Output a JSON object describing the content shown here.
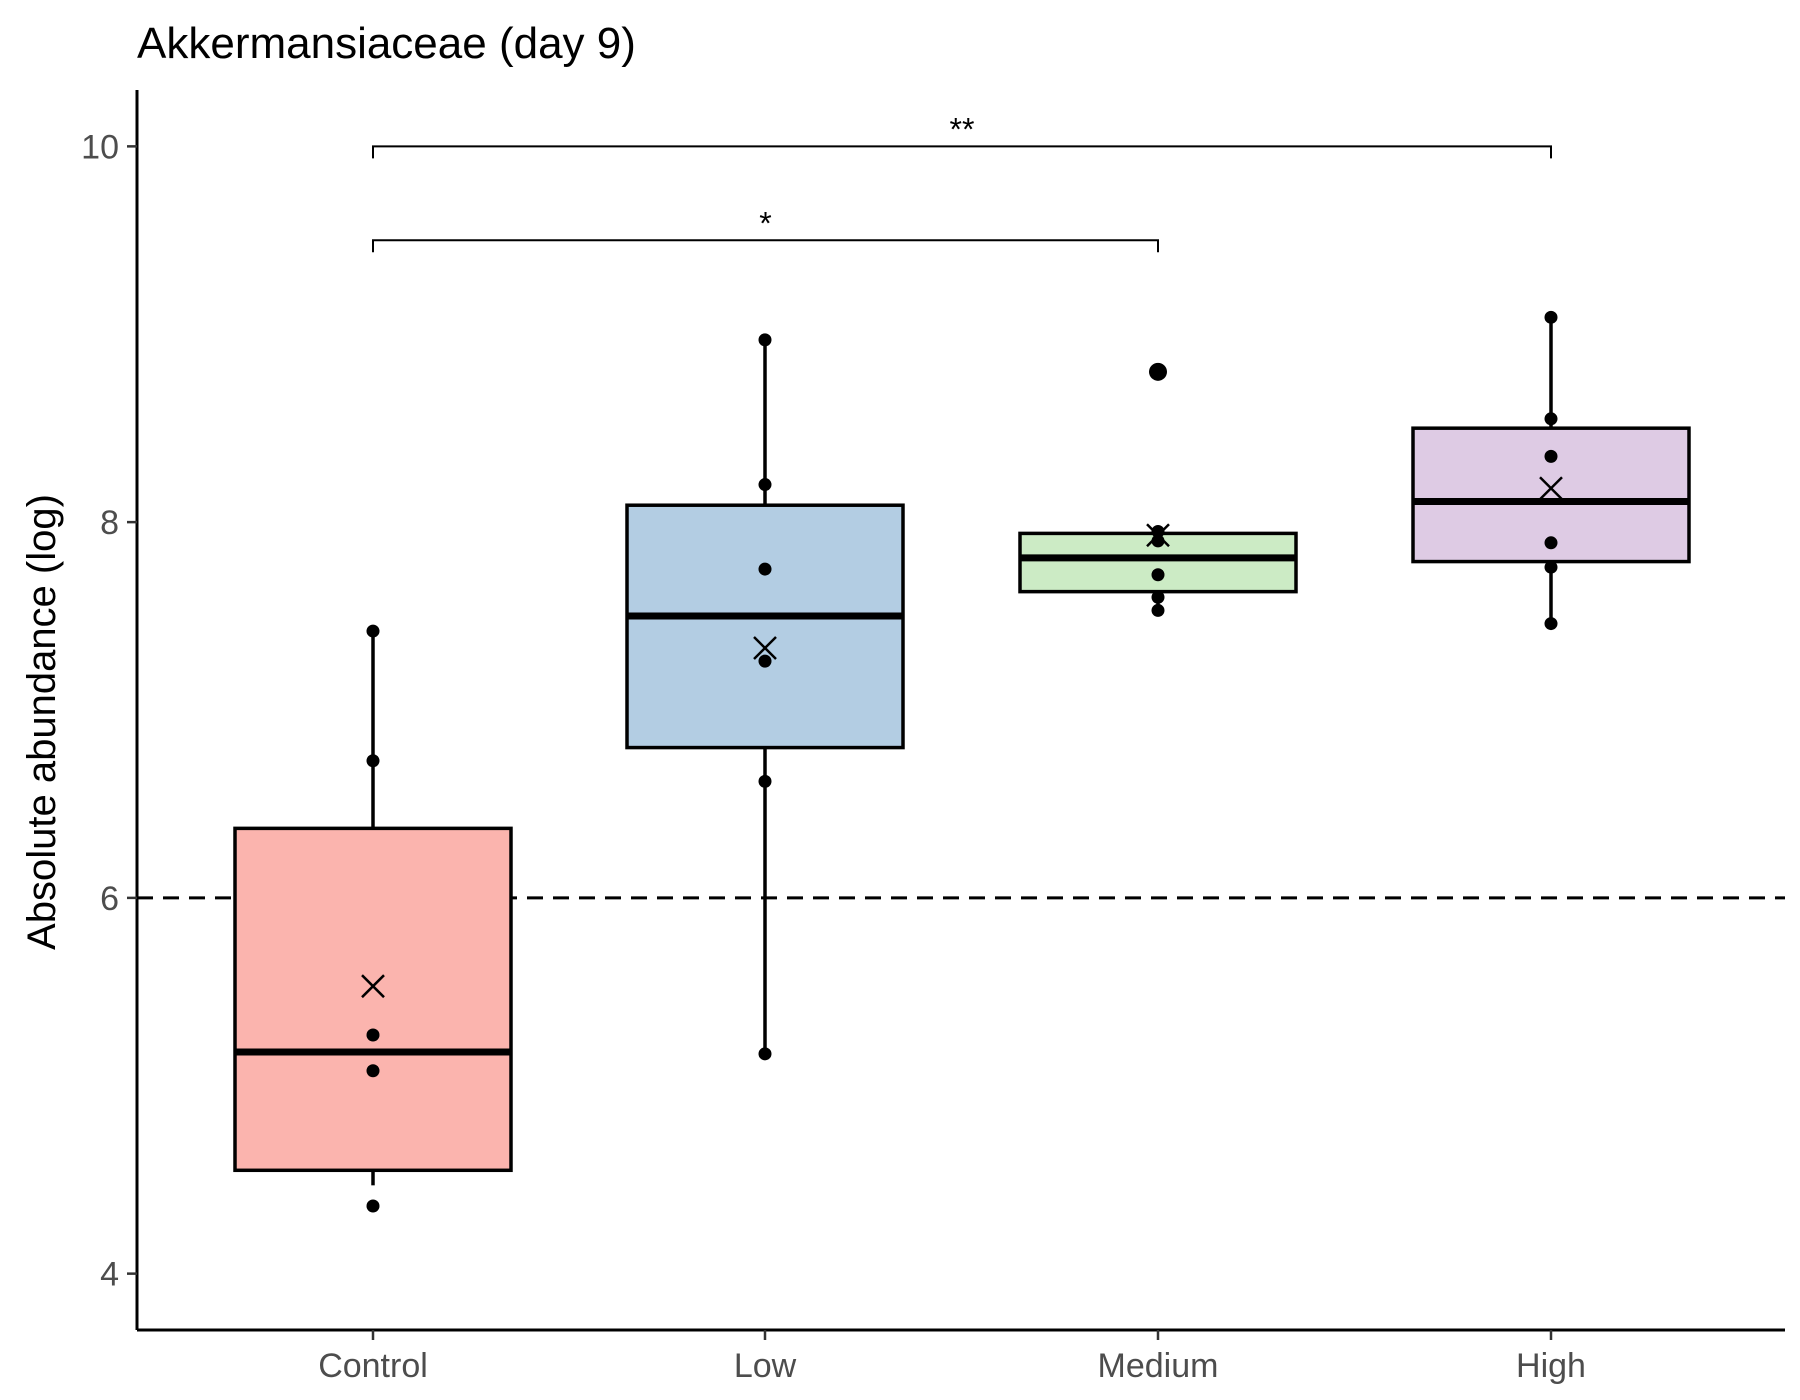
{
  "chart_data": {
    "type": "box",
    "title": "Akkermansiaceae (day 9)",
    "xlabel": "",
    "ylabel": "Absolute abundance (log)",
    "ylim": [
      3.7,
      10.3
    ],
    "yticks": [
      4,
      6,
      8,
      10
    ],
    "grid": false,
    "legend": "none",
    "reference_line": {
      "y": 6,
      "style": "dashed"
    },
    "categories": [
      "Control",
      "Low",
      "Medium",
      "High"
    ],
    "boxes": [
      {
        "category": "Control",
        "color": "#fbb4ae",
        "q1": 4.55,
        "median": 5.18,
        "q3": 6.37,
        "whisker_low": 4.47,
        "whisker_high": 7.42,
        "mean": 5.53,
        "points": [
          4.36,
          5.08,
          5.27,
          6.73,
          7.42
        ],
        "outliers": []
      },
      {
        "category": "Low",
        "color": "#b3cde3",
        "q1": 6.8,
        "median": 7.5,
        "q3": 8.09,
        "whisker_low": 5.17,
        "whisker_high": 8.97,
        "mean": 7.33,
        "points": [
          5.17,
          6.62,
          7.26,
          7.75,
          8.2,
          8.97
        ],
        "outliers": []
      },
      {
        "category": "Medium",
        "color": "#ccebc5",
        "q1": 7.63,
        "median": 7.81,
        "q3": 7.94,
        "whisker_low": 7.53,
        "whisker_high": 7.94,
        "mean": 7.93,
        "points": [
          7.53,
          7.6,
          7.72,
          7.9,
          7.95
        ],
        "outliers": [
          8.8
        ]
      },
      {
        "category": "High",
        "color": "#decbe4",
        "q1": 7.79,
        "median": 8.11,
        "q3": 8.5,
        "whisker_low": 7.46,
        "whisker_high": 9.09,
        "mean": 8.18,
        "points": [
          7.46,
          7.76,
          7.89,
          8.35,
          8.55,
          9.09
        ],
        "outliers": []
      }
    ],
    "significance": [
      {
        "from": "Control",
        "to": "High",
        "y": 10.0,
        "label": "**"
      },
      {
        "from": "Control",
        "to": "Medium",
        "y": 9.5,
        "label": "*"
      }
    ]
  }
}
